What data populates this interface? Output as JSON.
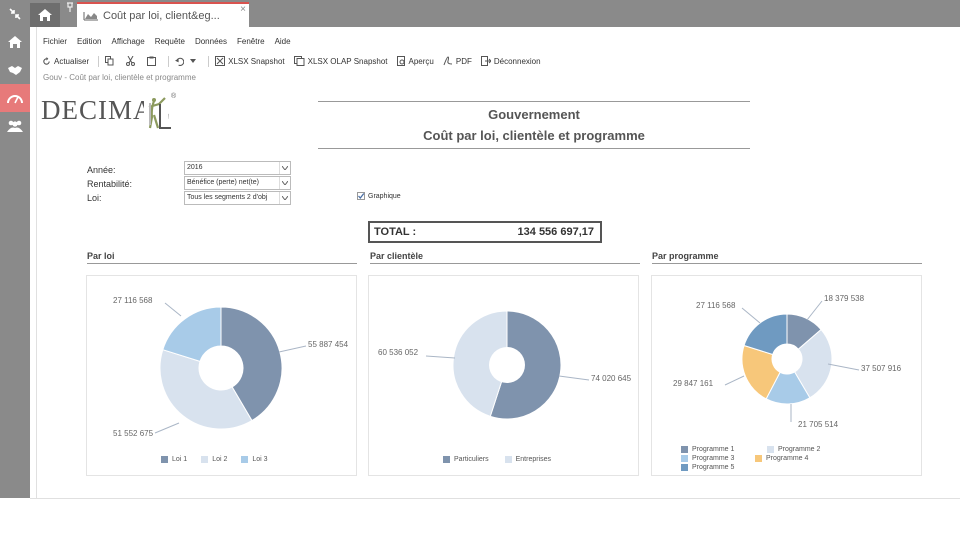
{
  "tab": {
    "title": "Coût par loi, client&eg..."
  },
  "menu": [
    "Fichier",
    "Edition",
    "Affichage",
    "Requête",
    "Données",
    "Fenêtre",
    "Aide"
  ],
  "toolbar": {
    "refresh": "Actualiser",
    "xlsx": "XLSX Snapshot",
    "olap": "XLSX OLAP Snapshot",
    "preview": "Aperçu",
    "pdf": "PDF",
    "logout": "Déconnexion"
  },
  "breadcrumb": "Gouv - Coût par loi, clientèle et programme",
  "logo": {
    "text": "DECIMAL",
    "mark": "®"
  },
  "report": {
    "title1": "Gouvernement",
    "title2": "Coût par loi, clientèle et programme"
  },
  "filters": {
    "year_label": "Année:",
    "year_value": "2016",
    "profit_label": "Rentabilité:",
    "profit_value": "Bénéfice (perte) net(te)",
    "law_label": "Loi:",
    "law_value": "Tous les segments 2 d'obj"
  },
  "graph_checkbox": {
    "label": "Graphique",
    "checked": true
  },
  "total": {
    "label": "TOTAL :",
    "value": "134 556 697,17"
  },
  "sections": {
    "by_law": "Par loi",
    "by_client": "Par clientèle",
    "by_program": "Par programme"
  },
  "colors": {
    "dark": "#7f93ad",
    "light": "#d8e2ee",
    "sky": "#a8cbe8",
    "orange": "#f7c77a",
    "steel": "#6f9ac1",
    "rail": "#8a8a8a",
    "active": "#e77a7a"
  },
  "chart_data": [
    {
      "type": "pie",
      "name": "Par loi",
      "categories": [
        "Loi 1",
        "Loi 2",
        "Loi 3"
      ],
      "values": [
        55887454,
        51552675,
        27116568
      ],
      "value_labels": [
        "55 887 454",
        "51 552 675",
        "27 116 568"
      ],
      "colors": [
        "#7f93ad",
        "#d8e2ee",
        "#a8cbe8"
      ],
      "donut": true,
      "legend": "bottom"
    },
    {
      "type": "pie",
      "name": "Par clientèle",
      "categories": [
        "Particuliers",
        "Entreprises"
      ],
      "values": [
        74020645,
        60536052
      ],
      "value_labels": [
        "74 020 645",
        "60 536 052"
      ],
      "colors": [
        "#7f93ad",
        "#d8e2ee"
      ],
      "donut": true,
      "legend": "bottom"
    },
    {
      "type": "pie",
      "name": "Par programme",
      "categories": [
        "Programme 1",
        "Programme 2",
        "Programme 3",
        "Programme 4",
        "Programme 5"
      ],
      "values": [
        18379538,
        37507916,
        21705514,
        29847161,
        27116568
      ],
      "value_labels": [
        "18 379 538",
        "37 507 916",
        "21 705 514",
        "29 847 161",
        "27 116 568"
      ],
      "colors": [
        "#7f93ad",
        "#d8e2ee",
        "#a8cbe8",
        "#f7c77a",
        "#6f9ac1"
      ],
      "donut": true,
      "legend": "bottom"
    }
  ]
}
